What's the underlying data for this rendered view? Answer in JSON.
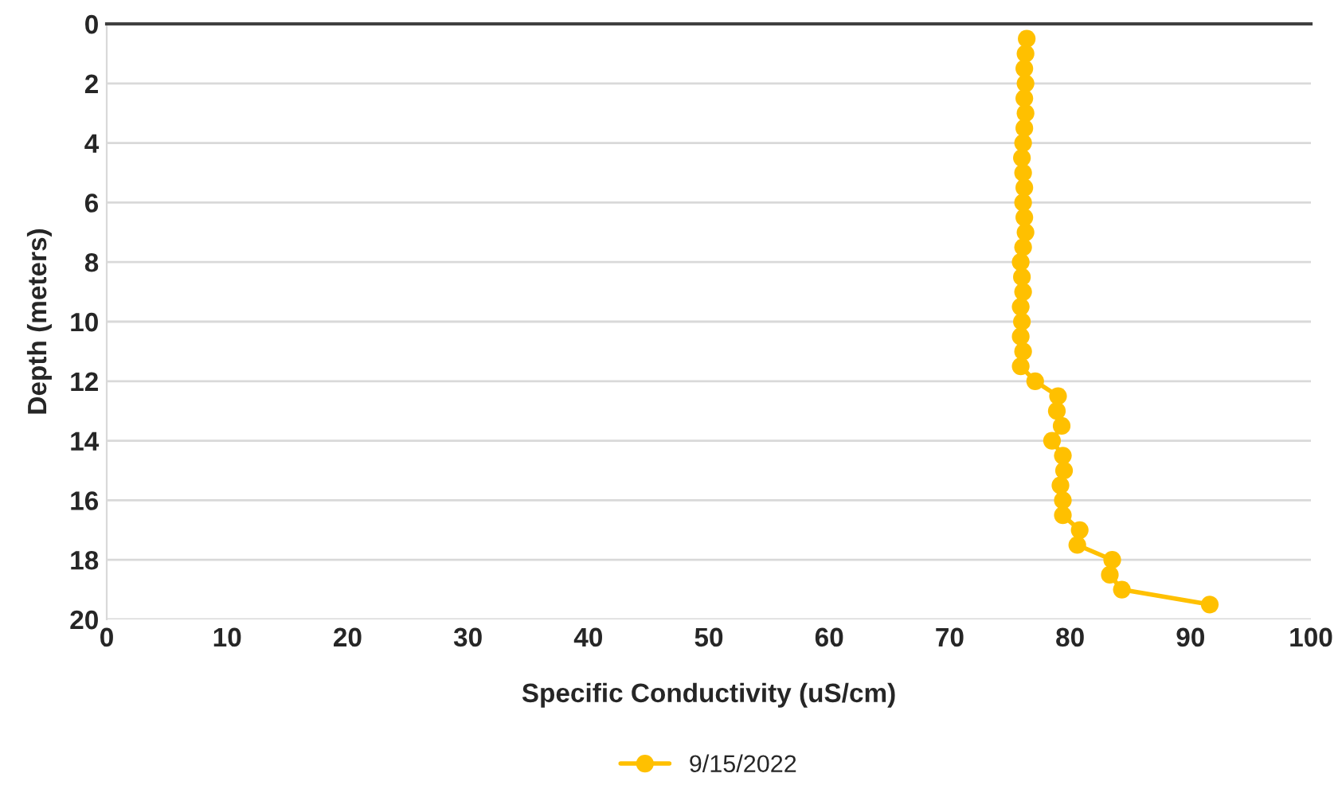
{
  "chart_data": {
    "type": "line",
    "xlabel": "Specific Conductivity (uS/cm)",
    "ylabel": "Depth (meters)",
    "xlim": [
      0,
      100
    ],
    "xticks": [
      0,
      10,
      20,
      30,
      40,
      50,
      60,
      70,
      80,
      90,
      100
    ],
    "ylim": [
      20,
      0
    ],
    "yticks": [
      0,
      2,
      4,
      6,
      8,
      10,
      12,
      14,
      16,
      18,
      20
    ],
    "grid": "y",
    "legend": "bottom",
    "marker": "circle",
    "line_style": "solid",
    "series": [
      {
        "name": "9/15/2022",
        "color": "#ffc000",
        "x": [
          76.4,
          76.3,
          76.2,
          76.3,
          76.2,
          76.3,
          76.2,
          76.1,
          76.0,
          76.1,
          76.2,
          76.1,
          76.2,
          76.3,
          76.1,
          75.9,
          76.0,
          76.1,
          75.9,
          76.0,
          75.9,
          76.1,
          75.9,
          77.1,
          79.0,
          78.9,
          79.3,
          78.5,
          79.4,
          79.5,
          79.2,
          79.4,
          79.4,
          80.8,
          80.6,
          83.5,
          83.3,
          84.3,
          91.6
        ],
        "values": [
          0.5,
          1,
          1.5,
          2,
          2.5,
          3,
          3.5,
          4,
          4.5,
          5,
          5.5,
          6,
          6.5,
          7,
          7.5,
          8,
          8.5,
          9,
          9.5,
          10,
          10.5,
          11,
          11.5,
          12,
          12.5,
          13,
          13.5,
          14,
          14.5,
          15,
          15.5,
          16,
          16.5,
          17,
          17.5,
          18,
          18.5,
          19,
          19.5
        ]
      }
    ]
  }
}
